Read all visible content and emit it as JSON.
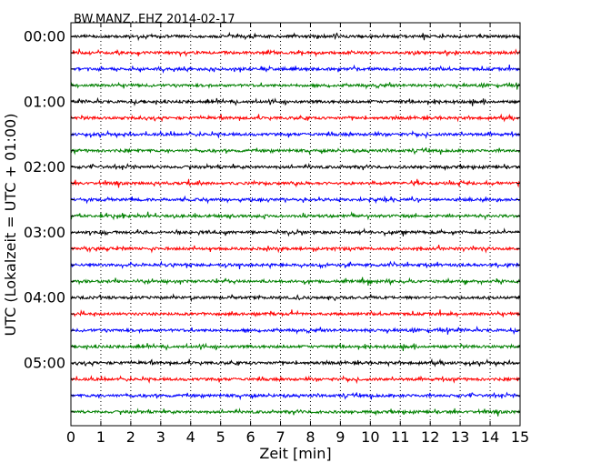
{
  "chart_data": {
    "type": "line",
    "title": "BW.MANZ..EHZ 2014-02-17",
    "xlabel": "Zeit  [min]",
    "ylabel": "UTC (Lokalzeit = UTC + 01:00)",
    "xlim": [
      0,
      15
    ],
    "xticks": [
      "0",
      "1",
      "2",
      "3",
      "4",
      "5",
      "6",
      "7",
      "8",
      "9",
      "10",
      "11",
      "12",
      "13",
      "14",
      "15"
    ],
    "row_interval_min": 15,
    "rows_per_hour": 4,
    "row_count": 24,
    "yticks": [
      "00:00",
      "01:00",
      "02:00",
      "03:00",
      "04:00",
      "05:00"
    ],
    "row_colors": [
      "#000000",
      "#ff0000",
      "#0000ff",
      "#008000"
    ],
    "grid": "vertical dotted lines at each minute",
    "series_description": "continuous seismogram traces, one per 15-minute row, small-amplitude background noise"
  }
}
